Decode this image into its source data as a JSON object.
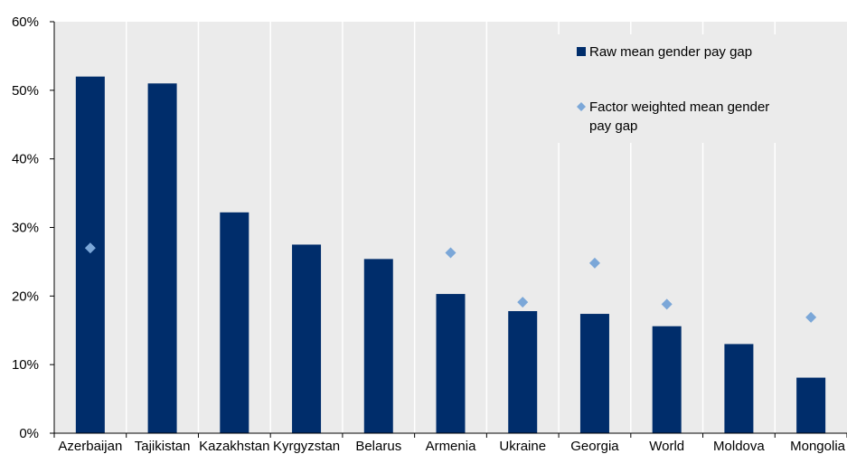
{
  "chart_data": {
    "type": "bar",
    "categories": [
      "Azerbaijan",
      "Tajikistan",
      "Kazakhstan",
      "Kyrgyzstan",
      "Belarus",
      "Armenia",
      "Ukraine",
      "Georgia",
      "World",
      "Moldova",
      "Mongolia"
    ],
    "series": [
      {
        "name": "Raw mean gender pay gap",
        "type": "bar",
        "color": "#002d6b",
        "values": [
          52.0,
          51.0,
          32.2,
          27.5,
          25.4,
          20.3,
          17.8,
          17.4,
          15.6,
          13.0,
          8.1
        ]
      },
      {
        "name": "Factor weighted mean gender pay gap",
        "type": "marker",
        "marker": "diamond",
        "color": "#7ba7d8",
        "values": [
          27.0,
          null,
          null,
          null,
          null,
          26.3,
          19.1,
          24.8,
          18.8,
          null,
          16.9
        ]
      }
    ],
    "yticks": [
      "0%",
      "10%",
      "20%",
      "30%",
      "40%",
      "50%",
      "60%"
    ],
    "ylim": [
      0,
      60
    ],
    "unit": "%",
    "grid": "vertical separators between categories",
    "legend": {
      "placement": "top-right",
      "entries": [
        {
          "lines": [
            "Raw mean gender pay gap"
          ]
        },
        {
          "lines": [
            "Factor weighted mean gender",
            "pay gap"
          ]
        }
      ]
    },
    "colors": {
      "background": "#ffffff",
      "plot_background": "#ebebeb",
      "separator": "#ffffff",
      "axis": "#000000"
    }
  }
}
